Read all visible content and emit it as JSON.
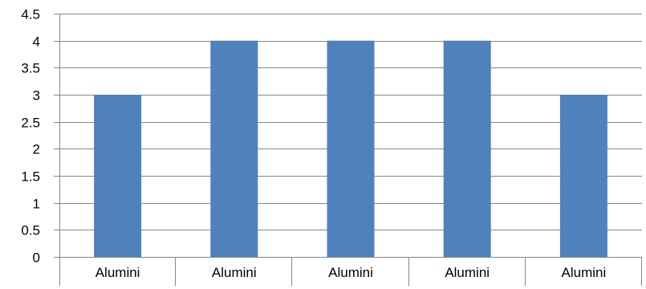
{
  "chart_data": {
    "type": "bar",
    "categories": [
      "Alumini",
      "Alumini",
      "Alumini",
      "Alumini",
      "Alumini"
    ],
    "values": [
      3,
      4,
      4,
      4,
      3
    ],
    "ylim": [
      0,
      4.5
    ],
    "yticks": [
      "0",
      "0.5",
      "1",
      "1.5",
      "2",
      "2.5",
      "3",
      "3.5",
      "4",
      "4.5"
    ],
    "grid": true,
    "bar_color": "#4f81bd",
    "grid_color": "#868686"
  }
}
